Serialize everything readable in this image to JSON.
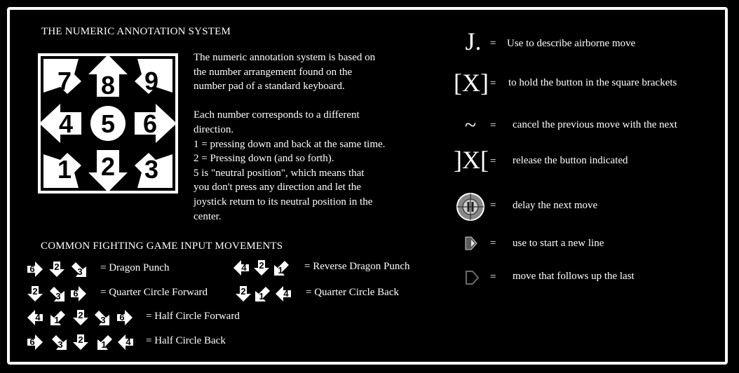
{
  "title": "THE NUMERIC ANNOTATION SYSTEM",
  "pad_numbers": [
    "7",
    "8",
    "9",
    "4",
    "5",
    "6",
    "1",
    "2",
    "3"
  ],
  "description": [
    "The numeric annotation system is based on",
    "the number arrangement found on the",
    "number pad of a standard keyboard.",
    "",
    "Each number corresponds to a different",
    "direction.",
    "1 = pressing down and back at the same time.",
    "2 = Pressing down (and so forth).",
    "5 is \"neutral position\", which means that",
    "you don't press any direction and let the",
    "joystick return to its neutral position in the",
    "center."
  ],
  "movements_title": "COMMON FIGHTING GAME INPUT MOVEMENTS",
  "movements": [
    {
      "sequence": [
        "6",
        "2",
        "3"
      ],
      "label": "= Dragon Punch"
    },
    {
      "sequence": [
        "4",
        "2",
        "1"
      ],
      "label": "= Reverse Dragon Punch"
    },
    {
      "sequence": [
        "2",
        "3",
        "6"
      ],
      "label": "= Quarter Circle Forward"
    },
    {
      "sequence": [
        "2",
        "1",
        "4"
      ],
      "label": "= Quarter Circle Back"
    },
    {
      "sequence": [
        "4",
        "1",
        "2",
        "3",
        "6"
      ],
      "label": "= Half Circle Forward"
    },
    {
      "sequence": [
        "6",
        "3",
        "2",
        "1",
        "4"
      ],
      "label": "= Half Circle Back"
    }
  ],
  "legend": [
    {
      "symbol": "J.",
      "icon": "jump-symbol",
      "eq": "=",
      "desc": "Use to describe airborne move"
    },
    {
      "symbol": "[X]",
      "icon": "hold-symbol",
      "eq": "=",
      "desc": "to hold the button in the square brackets"
    },
    {
      "symbol": "~",
      "icon": "cancel-symbol",
      "eq": "=",
      "desc": "cancel the previous move with the next"
    },
    {
      "symbol": "]X[",
      "icon": "release-symbol",
      "eq": "=",
      "desc": "release the button indicated"
    },
    {
      "symbol": "",
      "icon": "delay-icon",
      "eq": "=",
      "desc": "delay the next move"
    },
    {
      "symbol": "",
      "icon": "new-line-icon",
      "eq": "=",
      "desc": "use to start a new line"
    },
    {
      "symbol": "",
      "icon": "follow-up-icon",
      "eq": "=",
      "desc": "move that follows up the last"
    }
  ],
  "colors": {
    "background": "#000000",
    "foreground": "#ffffff",
    "icon_gray": "#8a8a8a"
  }
}
